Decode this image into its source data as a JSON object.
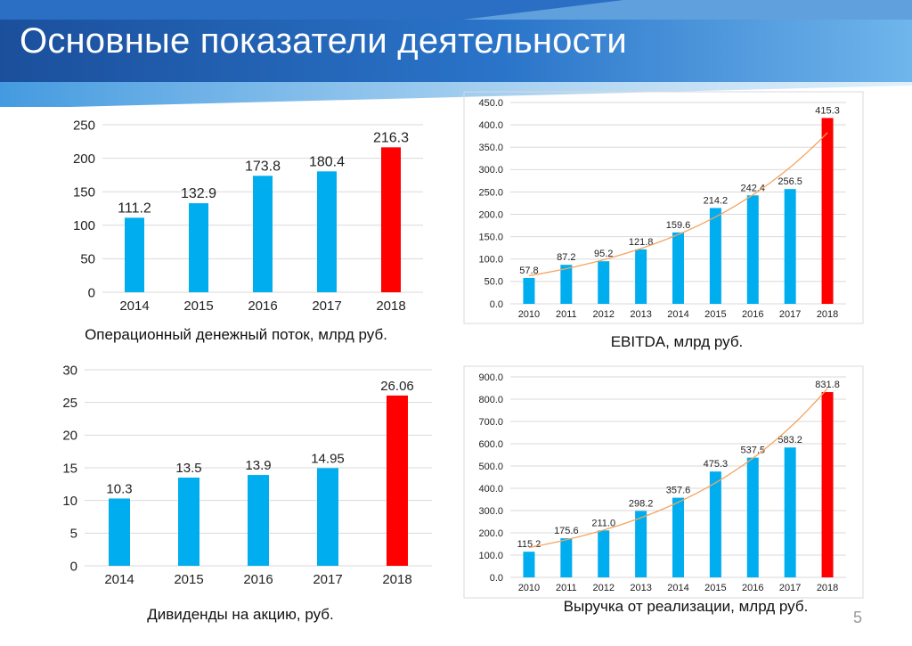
{
  "slide": {
    "title": "Основные показатели деятельности",
    "page_number": "5"
  },
  "colors": {
    "bar": "#00aeef",
    "highlight_bar": "#ff0000",
    "trend": "#f4a460",
    "grid": "#d9d9d9",
    "banner_dark": "#1f5fae",
    "banner_light": "#2f8fdc"
  },
  "chart_data": [
    {
      "id": "ocf",
      "type": "bar",
      "caption": "Операционный денежный поток, млрд руб.",
      "categories": [
        "2014",
        "2015",
        "2016",
        "2017",
        "2018"
      ],
      "values": [
        111.2,
        132.9,
        173.8,
        180.4,
        216.3
      ],
      "value_labels": [
        "111.2",
        "132.9",
        "173.8",
        "180.4",
        "216.3"
      ],
      "highlight_index": 4,
      "ylim": [
        0,
        250
      ],
      "yticks": [
        0,
        50,
        100,
        150,
        200,
        250
      ],
      "ytick_labels": [
        "0",
        "50",
        "100",
        "150",
        "200",
        "250"
      ],
      "grid": true,
      "trendline": false
    },
    {
      "id": "ebitda",
      "type": "bar",
      "caption": "EBITDA, млрд руб.",
      "categories": [
        "2010",
        "2011",
        "2012",
        "2013",
        "2014",
        "2015",
        "2016",
        "2017",
        "2018"
      ],
      "values": [
        57.8,
        87.2,
        95.2,
        121.8,
        159.6,
        214.2,
        242.4,
        256.5,
        415.3
      ],
      "value_labels": [
        "57.8",
        "87.2",
        "95.2",
        "121.8",
        "159.6",
        "214.2",
        "242.4",
        "256.5",
        "415.3"
      ],
      "highlight_index": 8,
      "ylim": [
        0,
        450
      ],
      "yticks": [
        0,
        50,
        100,
        150,
        200,
        250,
        300,
        350,
        400,
        450
      ],
      "ytick_labels": [
        "0.0",
        "50.0",
        "100.0",
        "150.0",
        "200.0",
        "250.0",
        "300.0",
        "350.0",
        "400.0",
        "450.0"
      ],
      "grid": true,
      "trendline": true
    },
    {
      "id": "dividends",
      "type": "bar",
      "caption": "Дивиденды на акцию, руб.",
      "categories": [
        "2014",
        "2015",
        "2016",
        "2017",
        "2018"
      ],
      "values": [
        10.3,
        13.5,
        13.9,
        14.95,
        26.06
      ],
      "value_labels": [
        "10.3",
        "13.5",
        "13.9",
        "14.95",
        "26.06"
      ],
      "highlight_index": 4,
      "ylim": [
        0,
        30
      ],
      "yticks": [
        0,
        5,
        10,
        15,
        20,
        25,
        30
      ],
      "ytick_labels": [
        "0",
        "5",
        "10",
        "15",
        "20",
        "25",
        "30"
      ],
      "grid": true,
      "trendline": false
    },
    {
      "id": "revenue",
      "type": "bar",
      "caption": "Выручка от реализации, млрд руб.",
      "categories": [
        "2010",
        "2011",
        "2012",
        "2013",
        "2014",
        "2015",
        "2016",
        "2017",
        "2018"
      ],
      "values": [
        115.2,
        175.6,
        211.0,
        298.2,
        357.6,
        475.3,
        537.5,
        583.2,
        831.8
      ],
      "value_labels": [
        "115.2",
        "175.6",
        "211.0",
        "298.2",
        "357.6",
        "475.3",
        "537.5",
        "583.2",
        "831.8"
      ],
      "highlight_index": 8,
      "ylim": [
        0,
        900
      ],
      "yticks": [
        0,
        100,
        200,
        300,
        400,
        500,
        600,
        700,
        800,
        900
      ],
      "ytick_labels": [
        "0.0",
        "100.0",
        "200.0",
        "300.0",
        "400.0",
        "500.0",
        "600.0",
        "700.0",
        "800.0",
        "900.0"
      ],
      "grid": true,
      "trendline": true
    }
  ]
}
